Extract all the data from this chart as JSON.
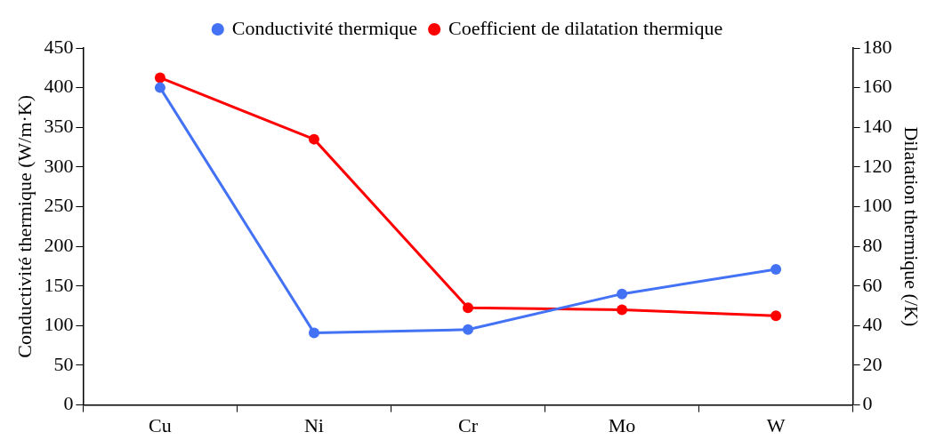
{
  "chart_data": {
    "type": "line",
    "ylabel": "Conductivité thermique (W/m·K)",
    "y2label": "Dilatation thermique (/K)",
    "categories": [
      "Cu",
      "Ni",
      "Cr",
      "Mo",
      "W"
    ],
    "series": [
      {
        "name": "Conductivité thermique",
        "color": "#4472f4",
        "values": [
          400,
          91,
          95,
          140,
          171
        ]
      },
      {
        "name": "Coefficient de dilatation thermique",
        "color": "#ff0000",
        "values": [
          165,
          134,
          49,
          48,
          45
        ],
        "axis": "y2"
      }
    ],
    "ylim": [
      0,
      450
    ],
    "yticks": [
      0,
      50,
      100,
      150,
      200,
      250,
      300,
      350,
      400,
      450
    ],
    "y2lim": [
      0,
      180
    ],
    "y2ticks": [
      0,
      20,
      40,
      60,
      80,
      100,
      120,
      140,
      160,
      180
    ],
    "grid": false,
    "legend": "top",
    "marker": "circle",
    "line_style": "solid"
  }
}
